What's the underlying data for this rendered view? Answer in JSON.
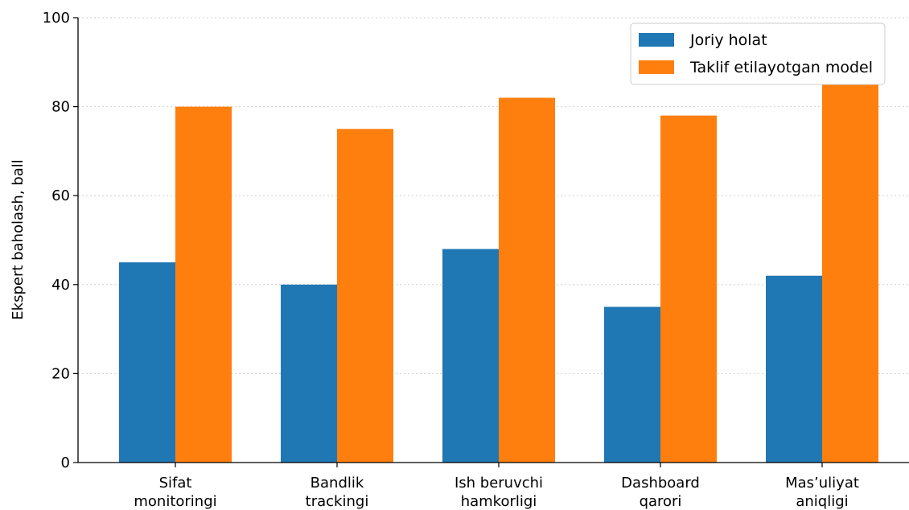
{
  "chart_data": {
    "type": "bar",
    "title": "",
    "xlabel": "",
    "ylabel": "Ekspert baholash, ball",
    "ylim": [
      0,
      100
    ],
    "yticks": [
      0,
      20,
      40,
      60,
      80,
      100
    ],
    "grid": "y-dotted",
    "legend_position": "top-right",
    "categories": [
      [
        "Sifat",
        "monitoringi"
      ],
      [
        "Bandlik",
        "trackingi"
      ],
      [
        "Ish beruvchi",
        "hamkorligi"
      ],
      [
        "Dashboard",
        "qarori"
      ],
      [
        "Mas’uliyat",
        "aniqligi"
      ]
    ],
    "series": [
      {
        "name": "Joriy holat",
        "color": "#1f77b4",
        "values": [
          45,
          40,
          48,
          35,
          42
        ]
      },
      {
        "name": "Taklif etilayotgan model",
        "color": "#ff7f0e",
        "values": [
          80,
          75,
          82,
          78,
          85
        ]
      }
    ]
  }
}
